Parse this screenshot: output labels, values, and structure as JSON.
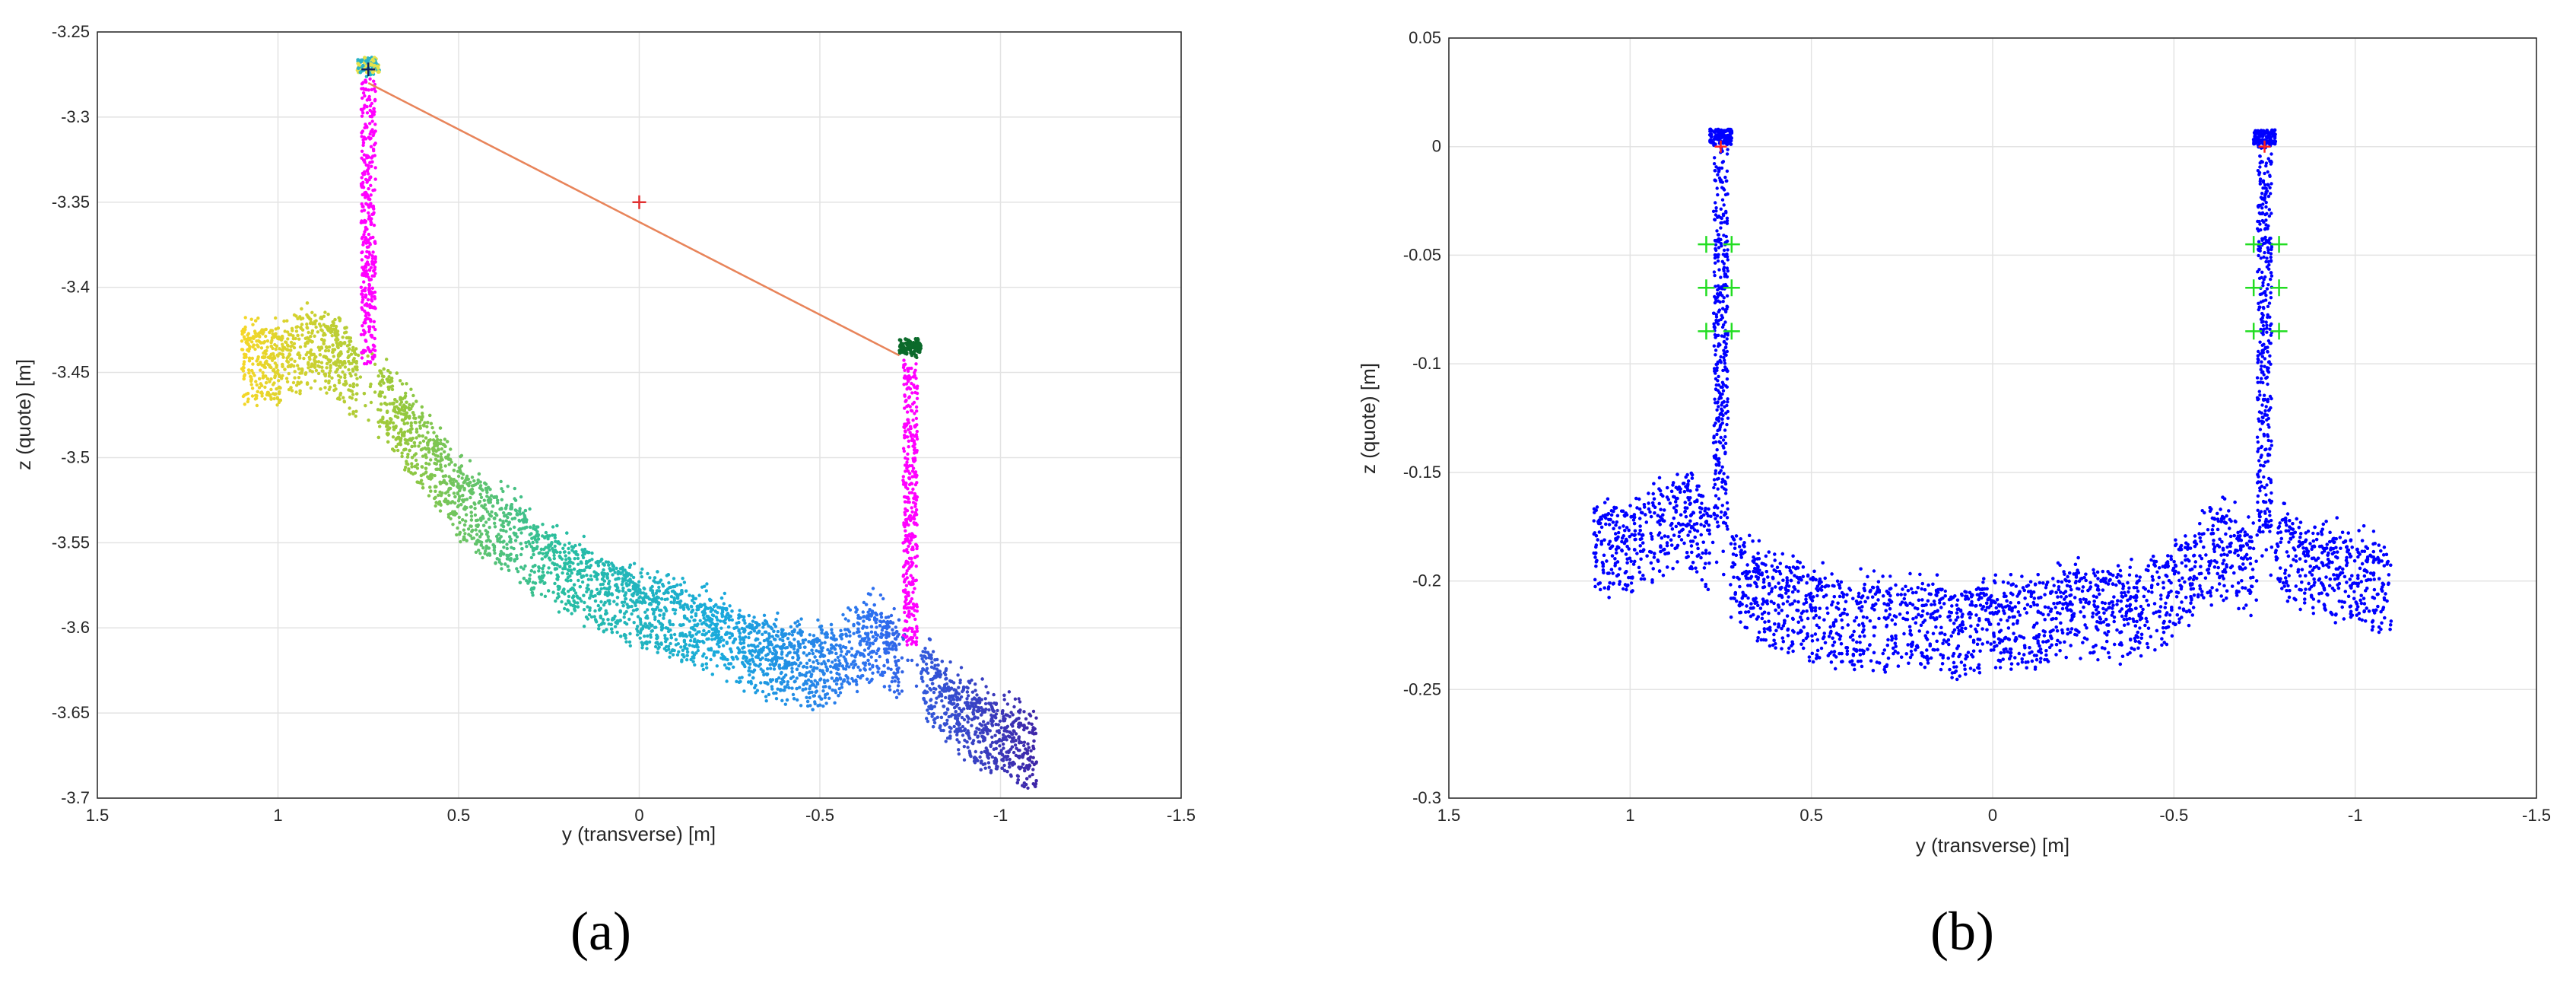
{
  "chart_data": [
    {
      "type": "scatter",
      "panel_label": "(a)",
      "xlabel": "y (transverse) [m]",
      "ylabel": "z (quote) [m]",
      "xlim": [
        1.5,
        -1.5
      ],
      "ylim": [
        -3.7,
        -3.25
      ],
      "x_reversed": true,
      "grid": true,
      "x_ticks": [
        "1.5",
        "1",
        "0.5",
        "0",
        "-0.5",
        "-1",
        "-1.5"
      ],
      "y_ticks": [
        "-3.25",
        "-3.3",
        "-3.35",
        "-3.4",
        "-3.45",
        "-3.5",
        "-3.55",
        "-3.6",
        "-3.65",
        "-3.7"
      ],
      "colormap": "parula (colored by y)",
      "profile": [
        [
          1.1,
          -3.43
        ],
        [
          1.0,
          -3.43
        ],
        [
          0.9,
          -3.42
        ],
        [
          0.85,
          -3.425
        ],
        [
          0.8,
          -3.435
        ],
        [
          0.75,
          -3.445
        ],
        [
          0.7,
          -3.455
        ],
        [
          0.6,
          -3.48
        ],
        [
          0.5,
          -3.51
        ],
        [
          0.4,
          -3.525
        ],
        [
          0.3,
          -3.54
        ],
        [
          0.2,
          -3.555
        ],
        [
          0.1,
          -3.565
        ],
        [
          0.0,
          -3.575
        ],
        [
          -0.1,
          -3.58
        ],
        [
          -0.2,
          -3.59
        ],
        [
          -0.3,
          -3.6
        ],
        [
          -0.4,
          -3.605
        ],
        [
          -0.5,
          -3.61
        ],
        [
          -0.6,
          -3.6
        ],
        [
          -0.65,
          -3.59
        ],
        [
          -0.7,
          -3.6
        ],
        [
          -0.8,
          -3.62
        ],
        [
          -0.9,
          -3.64
        ],
        [
          -1.0,
          -3.65
        ],
        [
          -1.1,
          -3.66
        ]
      ],
      "rail_heads": [
        {
          "y": 0.75,
          "z_top": -3.265
        },
        {
          "y": -0.75,
          "z_top": -3.43
        }
      ],
      "line_between_heads": [
        [
          0.75,
          -3.28
        ],
        [
          -0.72,
          -3.44
        ]
      ],
      "center_marker": {
        "y": 0.0,
        "z": -3.35
      }
    },
    {
      "type": "scatter",
      "panel_label": "(b)",
      "xlabel": "y (transverse) [m]",
      "ylabel": "z (quote) [m]",
      "xlim": [
        1.5,
        -1.5
      ],
      "ylim": [
        -0.3,
        0.05
      ],
      "x_reversed": true,
      "grid": true,
      "x_ticks": [
        "1.5",
        "1",
        "0.5",
        "0",
        "-0.5",
        "-1",
        "-1.5"
      ],
      "y_ticks": [
        "0.05",
        "0",
        "-0.05",
        "-0.1",
        "-0.15",
        "-0.2",
        "-0.25",
        "-0.3"
      ],
      "point_color": "#0000ff",
      "profile": [
        [
          1.1,
          -0.17
        ],
        [
          1.0,
          -0.17
        ],
        [
          0.9,
          -0.16
        ],
        [
          0.85,
          -0.155
        ],
        [
          0.8,
          -0.165
        ],
        [
          0.7,
          -0.185
        ],
        [
          0.6,
          -0.195
        ],
        [
          0.5,
          -0.2
        ],
        [
          0.4,
          -0.205
        ],
        [
          0.3,
          -0.205
        ],
        [
          0.2,
          -0.205
        ],
        [
          0.1,
          -0.21
        ],
        [
          0.0,
          -0.205
        ],
        [
          -0.1,
          -0.205
        ],
        [
          -0.2,
          -0.2
        ],
        [
          -0.3,
          -0.2
        ],
        [
          -0.4,
          -0.2
        ],
        [
          -0.5,
          -0.19
        ],
        [
          -0.6,
          -0.175
        ],
        [
          -0.65,
          -0.17
        ],
        [
          -0.7,
          -0.18
        ],
        [
          -0.8,
          -0.175
        ],
        [
          -0.9,
          -0.18
        ],
        [
          -1.0,
          -0.185
        ],
        [
          -1.1,
          -0.19
        ]
      ],
      "rail_heads": [
        {
          "y": 0.75,
          "z_top": 0.008
        },
        {
          "y": -0.75,
          "z_top": 0.008
        }
      ],
      "red_markers": [
        [
          0.75,
          0.0
        ],
        [
          -0.75,
          0.0
        ]
      ],
      "green_markers": [
        [
          0.79,
          -0.045
        ],
        [
          0.72,
          -0.045
        ],
        [
          0.79,
          -0.065
        ],
        [
          0.72,
          -0.065
        ],
        [
          0.79,
          -0.085
        ],
        [
          0.72,
          -0.085
        ],
        [
          -0.72,
          -0.045
        ],
        [
          -0.79,
          -0.045
        ],
        [
          -0.72,
          -0.065
        ],
        [
          -0.79,
          -0.065
        ],
        [
          -0.72,
          -0.085
        ],
        [
          -0.79,
          -0.085
        ]
      ]
    }
  ]
}
